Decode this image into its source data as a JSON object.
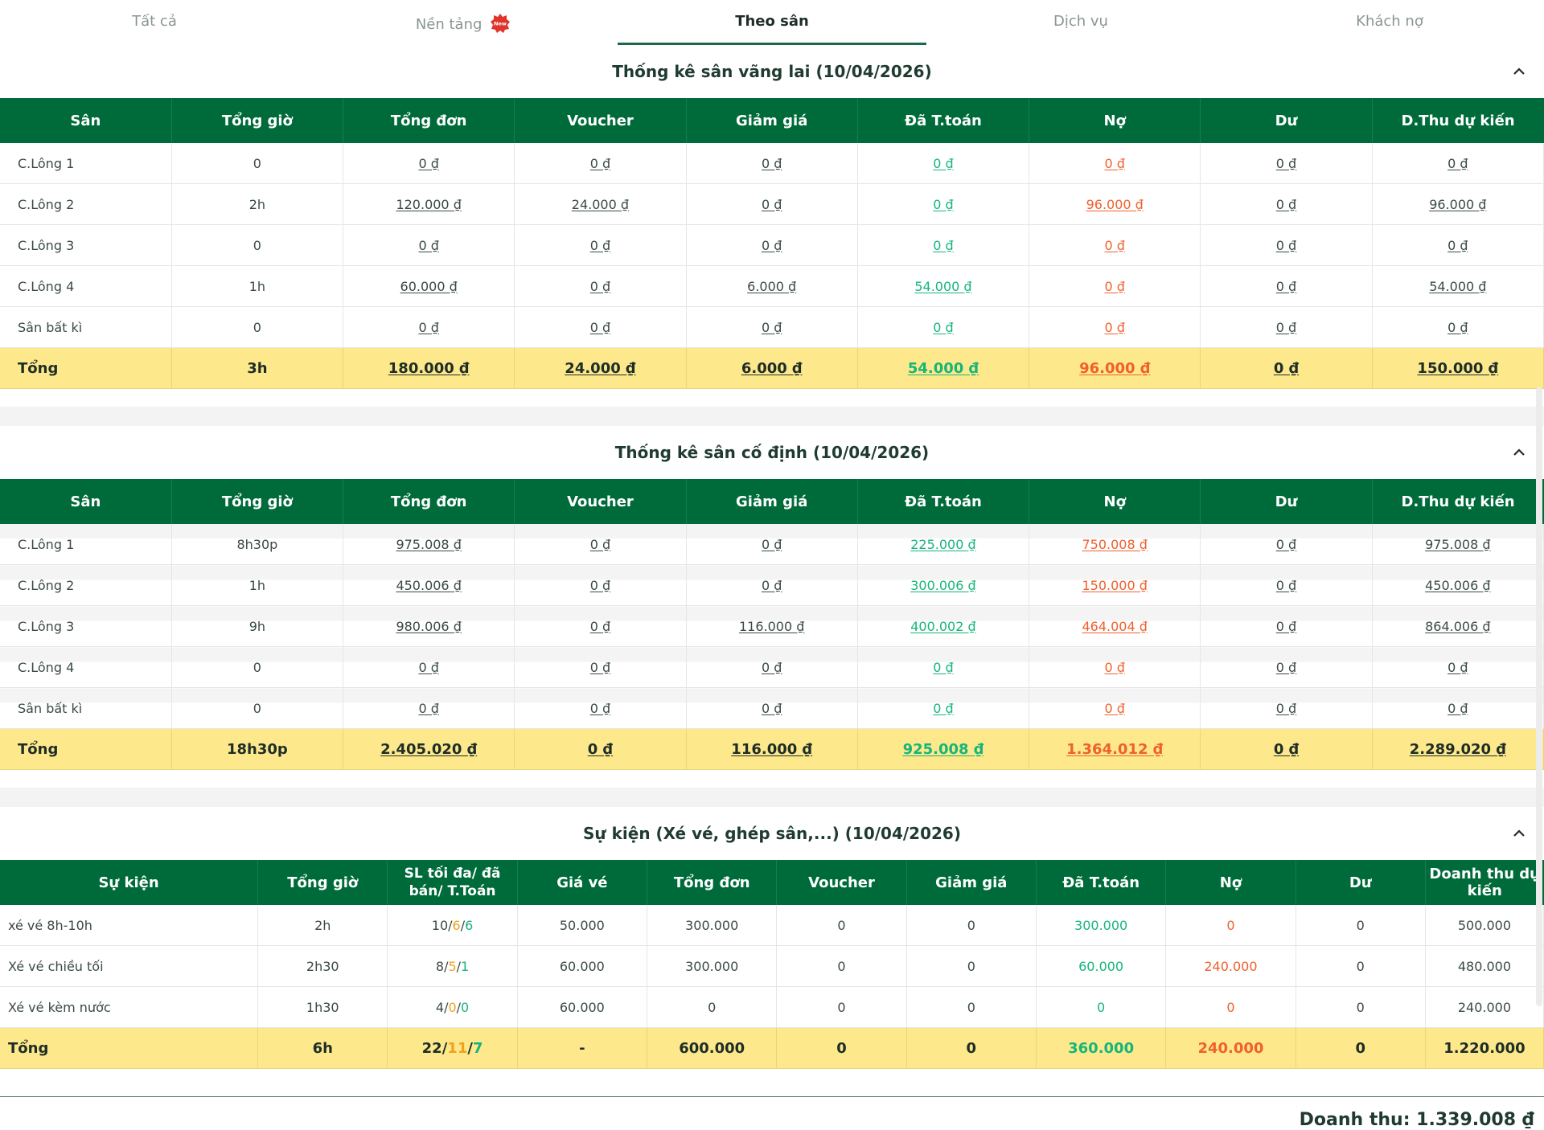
{
  "tabs": [
    {
      "label": "Tất cả"
    },
    {
      "label": "Nền tảng",
      "badge": "New"
    },
    {
      "label": "Theo sân"
    },
    {
      "label": "Dịch vụ"
    },
    {
      "label": "Khách nợ"
    }
  ],
  "colors": {
    "header_green": "#006b3a",
    "total_yellow": "#fde98b",
    "paid_green": "#16b57a",
    "debt_red": "#f0602e",
    "sold_orange": "#f0a21e"
  },
  "walkin": {
    "title": "Thống kê sân vãng lai (10/04/2026)",
    "columns": [
      "Sân",
      "Tổng giờ",
      "Tổng đơn",
      "Voucher",
      "Giảm giá",
      "Đã T.toán",
      "Nợ",
      "Dư",
      "D.Thu dự kiến"
    ],
    "rows": [
      {
        "name": "C.Lông 1",
        "hours": "0",
        "total": "0 ₫",
        "voucher": "0 ₫",
        "discount": "0 ₫",
        "paid": "0 ₫",
        "debt": "0 ₫",
        "surplus": "0 ₫",
        "expected": "0 ₫"
      },
      {
        "name": "C.Lông 2",
        "hours": "2h",
        "total": "120.000 ₫",
        "voucher": "24.000 ₫",
        "discount": "0 ₫",
        "paid": "0 ₫",
        "debt": "96.000 ₫",
        "surplus": "0 ₫",
        "expected": "96.000 ₫"
      },
      {
        "name": "C.Lông 3",
        "hours": "0",
        "total": "0 ₫",
        "voucher": "0 ₫",
        "discount": "0 ₫",
        "paid": "0 ₫",
        "debt": "0 ₫",
        "surplus": "0 ₫",
        "expected": "0 ₫"
      },
      {
        "name": "C.Lông 4",
        "hours": "1h",
        "total": "60.000 ₫",
        "voucher": "0 ₫",
        "discount": "6.000 ₫",
        "paid": "54.000 ₫",
        "debt": "0 ₫",
        "surplus": "0 ₫",
        "expected": "54.000 ₫"
      },
      {
        "name": "Sân bất kì",
        "hours": "0",
        "total": "0 ₫",
        "voucher": "0 ₫",
        "discount": "0 ₫",
        "paid": "0 ₫",
        "debt": "0 ₫",
        "surplus": "0 ₫",
        "expected": "0 ₫"
      }
    ],
    "totals": {
      "name": "Tổng",
      "hours": "3h",
      "total": "180.000 ₫",
      "voucher": "24.000 ₫",
      "discount": "6.000 ₫",
      "paid": "54.000 ₫",
      "debt": "96.000 ₫",
      "surplus": "0 ₫",
      "expected": "150.000 ₫"
    }
  },
  "fixed": {
    "title": "Thống kê sân cố định (10/04/2026)",
    "columns": [
      "Sân",
      "Tổng giờ",
      "Tổng đơn",
      "Voucher",
      "Giảm giá",
      "Đã T.toán",
      "Nợ",
      "Dư",
      "D.Thu dự kiến"
    ],
    "rows": [
      {
        "name": "C.Lông 1",
        "hours": "8h30p",
        "total": "975.008 ₫",
        "voucher": "0 ₫",
        "discount": "0 ₫",
        "paid": "225.000 ₫",
        "debt": "750.008 ₫",
        "surplus": "0 ₫",
        "expected": "975.008 ₫"
      },
      {
        "name": "C.Lông 2",
        "hours": "1h",
        "total": "450.006 ₫",
        "voucher": "0 ₫",
        "discount": "0 ₫",
        "paid": "300.006 ₫",
        "debt": "150.000 ₫",
        "surplus": "0 ₫",
        "expected": "450.006 ₫"
      },
      {
        "name": "C.Lông 3",
        "hours": "9h",
        "total": "980.006 ₫",
        "voucher": "0 ₫",
        "discount": "116.000 ₫",
        "paid": "400.002 ₫",
        "debt": "464.004 ₫",
        "surplus": "0 ₫",
        "expected": "864.006 ₫"
      },
      {
        "name": "C.Lông 4",
        "hours": "0",
        "total": "0 ₫",
        "voucher": "0 ₫",
        "discount": "0 ₫",
        "paid": "0 ₫",
        "debt": "0 ₫",
        "surplus": "0 ₫",
        "expected": "0 ₫"
      },
      {
        "name": "Sân bất kì",
        "hours": "0",
        "total": "0 ₫",
        "voucher": "0 ₫",
        "discount": "0 ₫",
        "paid": "0 ₫",
        "debt": "0 ₫",
        "surplus": "0 ₫",
        "expected": "0 ₫"
      }
    ],
    "totals": {
      "name": "Tổng",
      "hours": "18h30p",
      "total": "2.405.020 ₫",
      "voucher": "0 ₫",
      "discount": "116.000 ₫",
      "paid": "925.008 ₫",
      "debt": "1.364.012 ₫",
      "surplus": "0 ₫",
      "expected": "2.289.020 ₫"
    }
  },
  "events": {
    "title": "Sự kiện (Xé vé, ghép sân,...) (10/04/2026)",
    "columns": [
      "Sự kiện",
      "Tổng giờ",
      "SL tối đa/ đã bán/ T.Toán",
      "Giá vé",
      "Tổng đơn",
      "Voucher",
      "Giảm giá",
      "Đã T.toán",
      "Nợ",
      "Dư",
      "Doanh thu dự kiến"
    ],
    "rows": [
      {
        "name": "xé vé 8h-10h",
        "hours": "2h",
        "max": "10",
        "sold": "6",
        "paid_count": "6",
        "price": "50.000",
        "total": "300.000",
        "voucher": "0",
        "discount": "0",
        "paid": "300.000",
        "debt": "0",
        "surplus": "0",
        "expected": "500.000"
      },
      {
        "name": "Xé vé chiều tối",
        "hours": "2h30",
        "max": "8",
        "sold": "5",
        "paid_count": "1",
        "price": "60.000",
        "total": "300.000",
        "voucher": "0",
        "discount": "0",
        "paid": "60.000",
        "debt": "240.000",
        "surplus": "0",
        "expected": "480.000"
      },
      {
        "name": "Xé vé kèm nước",
        "hours": "1h30",
        "max": "4",
        "sold": "0",
        "paid_count": "0",
        "price": "60.000",
        "total": "0",
        "voucher": "0",
        "discount": "0",
        "paid": "0",
        "debt": "0",
        "surplus": "0",
        "expected": "240.000"
      }
    ],
    "totals": {
      "name": "Tổng",
      "hours": "6h",
      "max": "22",
      "sold": "11",
      "paid_count": "7",
      "price": "-",
      "total": "600.000",
      "voucher": "0",
      "discount": "0",
      "paid": "360.000",
      "debt": "240.000",
      "surplus": "0",
      "expected": "1.220.000"
    }
  },
  "revenue": {
    "label": "Doanh thu: 1.339.008 ₫"
  }
}
